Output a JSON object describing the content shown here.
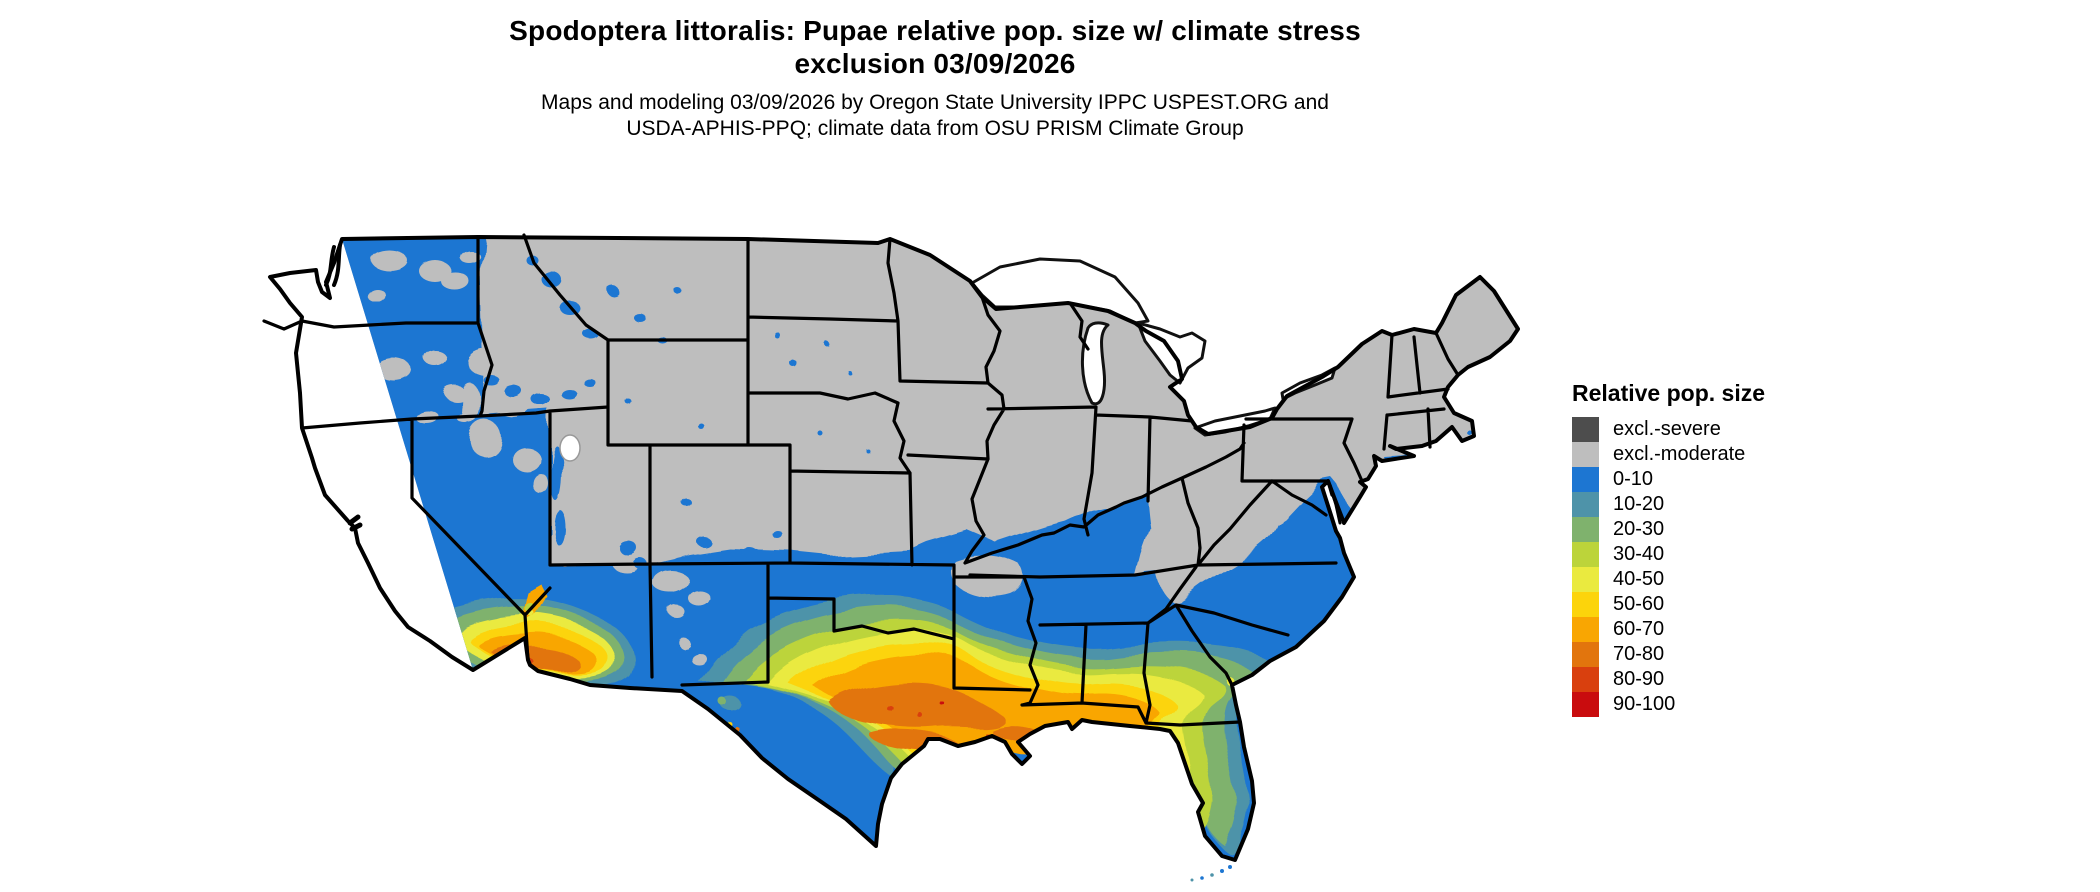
{
  "title": {
    "line1": "Spodoptera littoralis: Pupae relative pop. size w/ climate stress",
    "line2": "exclusion 03/09/2026"
  },
  "subtitle": {
    "line1": "Maps and modeling 03/09/2026 by Oregon State University IPPC USPEST.ORG and",
    "line2": "USDA-APHIS-PPQ; climate data from OSU PRISM Climate Group"
  },
  "legend": {
    "title": "Relative pop. size",
    "items": [
      {
        "label": "excl.-severe",
        "color": "#4D4D4D"
      },
      {
        "label": "excl.-moderate",
        "color": "#BEBEBE"
      },
      {
        "label": "0-10",
        "color": "#1D76D2"
      },
      {
        "label": "10-20",
        "color": "#4E93A9"
      },
      {
        "label": "20-30",
        "color": "#7FB26D"
      },
      {
        "label": "30-40",
        "color": "#BCD43A"
      },
      {
        "label": "40-50",
        "color": "#EAEA3F"
      },
      {
        "label": "50-60",
        "color": "#FCD40B"
      },
      {
        "label": "60-70",
        "color": "#F9A602"
      },
      {
        "label": "70-80",
        "color": "#E2750D"
      },
      {
        "label": "80-90",
        "color": "#D9400E"
      },
      {
        "label": "90-100",
        "color": "#C90C0E"
      }
    ]
  },
  "map": {
    "type": "raster choropleth",
    "region": "Contiguous United States with state boundaries",
    "border_color": "#000000",
    "water_color": "#FFFFFF",
    "zones": [
      {
        "class": "excl.-moderate",
        "areas": "entire northern US: Northeast, Midwest, northern plains, Rockies, Appalachians, Ozarks, interior Great Basin and high mountains"
      },
      {
        "class": "0-10",
        "areas": "Pacific coast states, Nevada, Arizona, New Mexico, southern plains from Kansas south, mid-South, Tennessee and Kentucky valleys, southeastern coastal plain up to Chesapeake Bay, south Texas tip and south Florida tip"
      },
      {
        "class": "10-20",
        "areas": "north Texas, southern Oklahoma, inner band across Mississippi, Alabama, Georgia; south Texas and south-central Florida"
      },
      {
        "class": "20-30",
        "areas": "band inside the 10-20 band across Texas and the Gulf South"
      },
      {
        "class": "30-40",
        "areas": "central Texas margin, central Georgia-Alabama band, central Florida fringe"
      },
      {
        "class": "40-50",
        "areas": "ring around the central Texas core and north Florida"
      },
      {
        "class": "50-60",
        "areas": "ring around central Texas core, Florida panhandle coast fringe, southwest Arizona fringe"
      },
      {
        "class": "60-70",
        "areas": "broad central/south-central Texas, Gulf coast strip Louisiana to Florida panhandle, central Florida, southwest Arizona / southeast California desert"
      },
      {
        "class": "70-80",
        "areas": "core streaks in central Texas, Louisiana coast, central Florida core, Sonoran desert core"
      },
      {
        "class": "80-90",
        "areas": "small flecks within Texas core and southern California coast/islands"
      },
      {
        "class": "90-100",
        "areas": "rare flecks in hottest cores"
      }
    ]
  }
}
